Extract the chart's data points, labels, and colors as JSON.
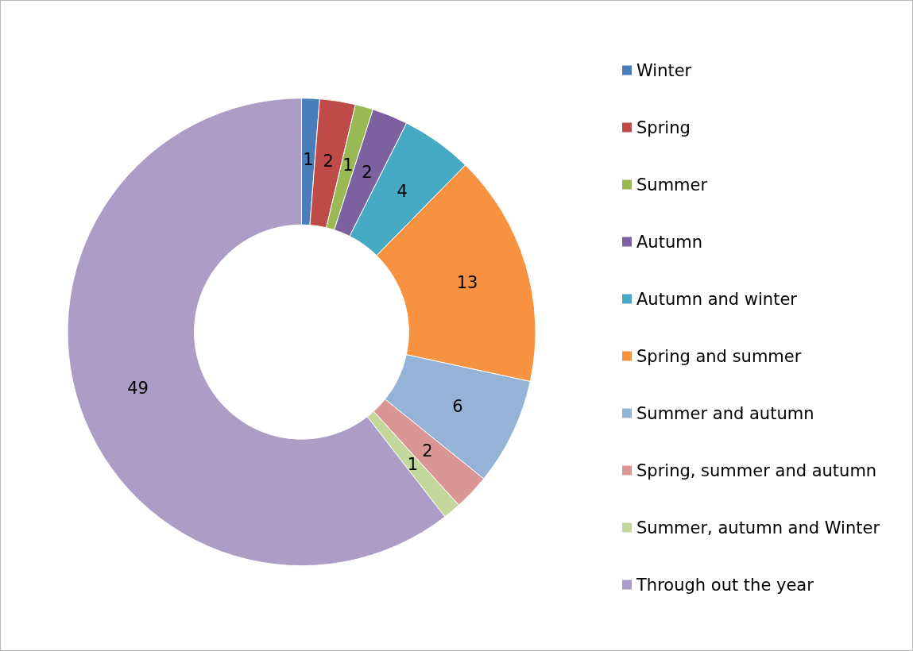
{
  "chart_data": {
    "type": "donut",
    "categories": [
      "Winter",
      "Spring",
      "Summer",
      "Autumn",
      "Autumn and winter",
      "Spring and summer",
      "Summer and autumn",
      "Spring, summer and autumn",
      "Summer, autumn and Winter",
      "Through out the year"
    ],
    "values": [
      1,
      2,
      1,
      2,
      4,
      13,
      6,
      2,
      1,
      49
    ],
    "colors": [
      "#4a7ebb",
      "#be4b48",
      "#98b954",
      "#7d60a0",
      "#46aac5",
      "#f69240",
      "#95b3d7",
      "#d99694",
      "#c3d69b",
      "#ab9dc6"
    ],
    "data_labels": true,
    "legend": "right"
  }
}
